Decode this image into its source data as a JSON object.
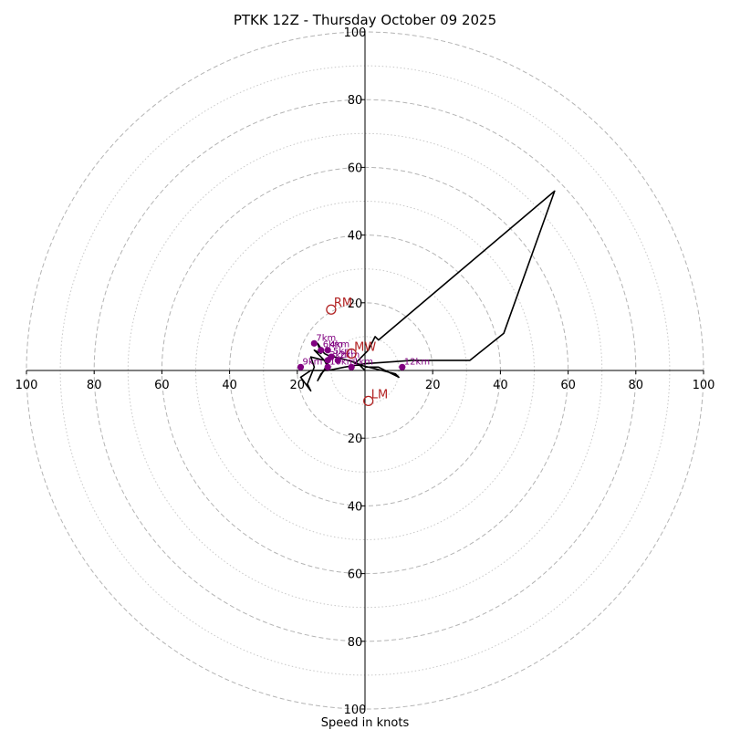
{
  "chart_data": {
    "type": "hodograph",
    "title": "PTKK 12Z - Thursday October 09 2025",
    "xlabel": "Speed in knots",
    "ylabel": "",
    "range": [
      -100,
      100
    ],
    "x_ticks": [
      {
        "v": -100,
        "label": "100"
      },
      {
        "v": -80,
        "label": "80"
      },
      {
        "v": -60,
        "label": "60"
      },
      {
        "v": -40,
        "label": "40"
      },
      {
        "v": -20,
        "label": "20"
      },
      {
        "v": 20,
        "label": "20"
      },
      {
        "v": 40,
        "label": "40"
      },
      {
        "v": 60,
        "label": "60"
      },
      {
        "v": 80,
        "label": "80"
      },
      {
        "v": 100,
        "label": "100"
      }
    ],
    "y_ticks": [
      {
        "v": 100,
        "label": "100"
      },
      {
        "v": 80,
        "label": "80"
      },
      {
        "v": 60,
        "label": "60"
      },
      {
        "v": 40,
        "label": "40"
      },
      {
        "v": 20,
        "label": "20"
      },
      {
        "v": -20,
        "label": "20"
      },
      {
        "v": -40,
        "label": "40"
      },
      {
        "v": -60,
        "label": "60"
      },
      {
        "v": -80,
        "label": "80"
      },
      {
        "v": -100,
        "label": "100"
      }
    ],
    "rings_dashed": [
      20,
      40,
      60,
      80,
      100
    ],
    "rings_dotted": [
      10,
      30,
      50,
      70,
      90
    ],
    "wind_profile_uv_kt": [
      [
        0,
        0
      ],
      [
        -2,
        2
      ],
      [
        -5,
        3
      ],
      [
        -9,
        4
      ],
      [
        -10,
        4
      ],
      [
        -12,
        5
      ],
      [
        -14,
        8
      ],
      [
        -13,
        5
      ],
      [
        -15,
        6
      ],
      [
        -12,
        3
      ],
      [
        -11,
        2
      ],
      [
        -14,
        -3
      ],
      [
        -13,
        -1
      ],
      [
        -11,
        1
      ],
      [
        -12,
        3
      ],
      [
        -16,
        4
      ],
      [
        -15,
        1
      ],
      [
        -17,
        -4
      ],
      [
        -16,
        -6
      ],
      [
        -19,
        -2
      ],
      [
        -16,
        0
      ],
      [
        -11,
        0
      ],
      [
        -6,
        1
      ],
      [
        0,
        2
      ],
      [
        14,
        3
      ],
      [
        31,
        3
      ],
      [
        41,
        11
      ],
      [
        56,
        53
      ],
      [
        4,
        9
      ],
      [
        3,
        10
      ],
      [
        1,
        6
      ],
      [
        -2,
        3
      ],
      [
        -3,
        2
      ],
      [
        5,
        0
      ],
      [
        9,
        -1
      ],
      [
        10,
        -2
      ],
      [
        4,
        1
      ],
      [
        0,
        1
      ]
    ],
    "height_markers": [
      {
        "label": "3km",
        "u": -11,
        "v": 3
      },
      {
        "label": "4km",
        "u": -11,
        "v": 6
      },
      {
        "label": "5km",
        "u": -10,
        "v": 4
      },
      {
        "label": "6km",
        "u": -13,
        "v": 6
      },
      {
        "label": "7km",
        "u": -15,
        "v": 8
      },
      {
        "label": "9km",
        "u": -19,
        "v": 1
      },
      {
        "label": "10km",
        "u": -11,
        "v": 1
      },
      {
        "label": "2km",
        "u": -8,
        "v": 3
      },
      {
        "label": "1km",
        "u": -4,
        "v": 1
      },
      {
        "label": "12km",
        "u": 11,
        "v": 1
      }
    ],
    "storm_motions": [
      {
        "label": "RM",
        "u": -10,
        "v": 18
      },
      {
        "label": "MW",
        "u": -4,
        "v": 5
      },
      {
        "label": "LM",
        "u": 1,
        "v": -9
      }
    ]
  }
}
